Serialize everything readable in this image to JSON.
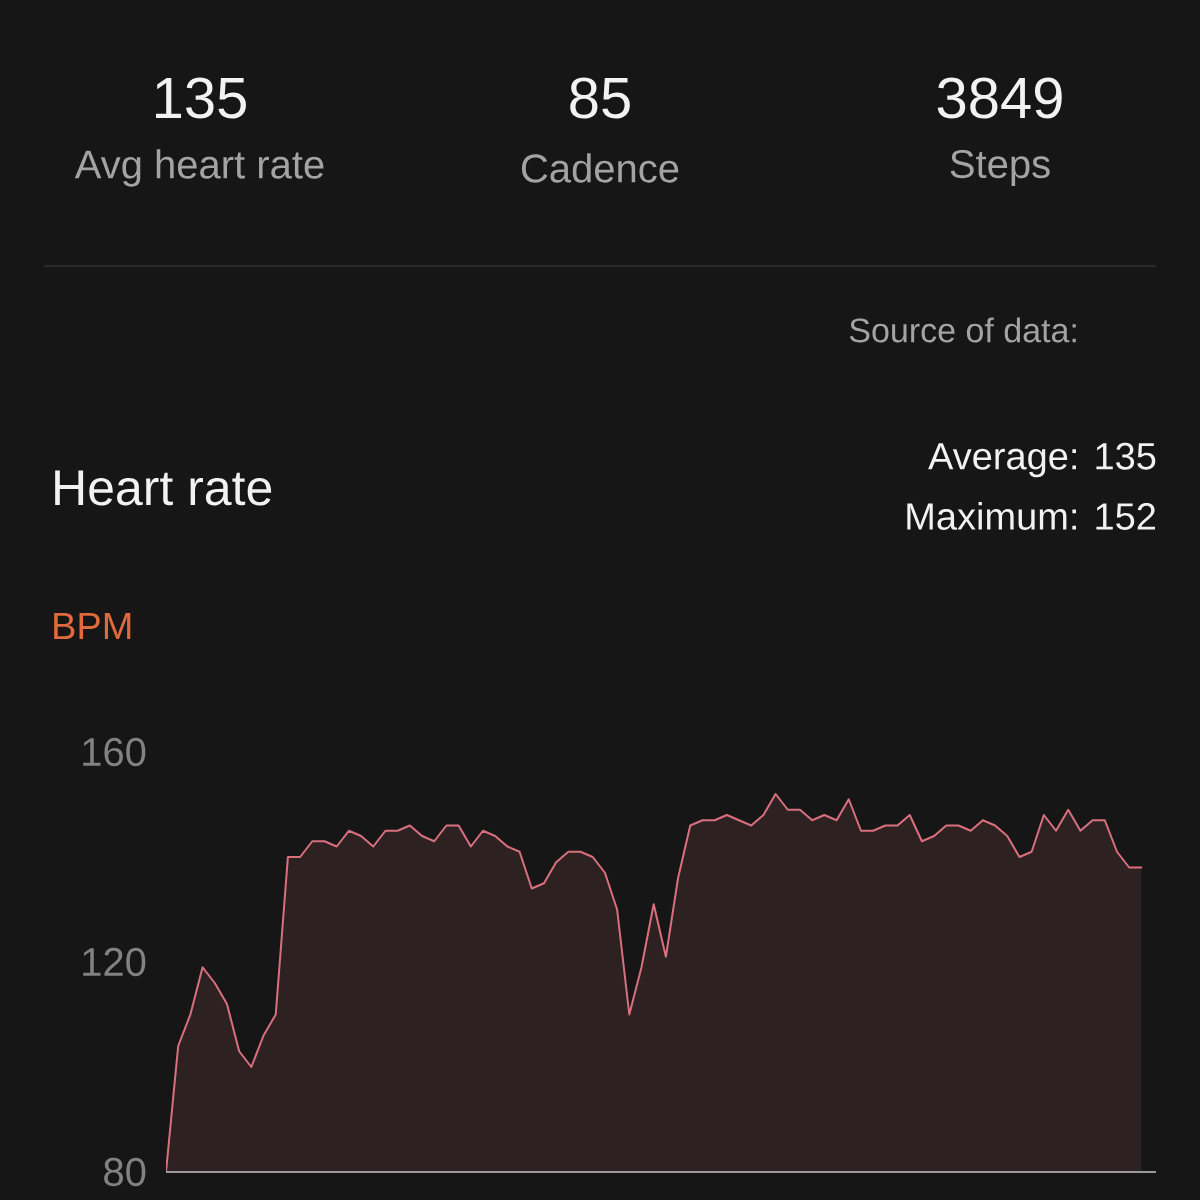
{
  "chart_data": [
    {
      "type": "other",
      "annotations": [
        "135",
        "Avg heart rate",
        "85",
        "Cadence",
        "3849",
        "Steps",
        "Source of data:"
      ]
    },
    {
      "type": "area",
      "title": "Heart rate",
      "ylabel": "BPM",
      "annotations": [
        "Average: 135",
        "Maximum: 152"
      ],
      "categories": [
        null,
        null,
        null,
        null,
        null,
        null,
        null,
        null,
        null,
        null,
        null,
        null,
        null,
        null,
        null,
        null,
        null,
        null,
        null,
        null,
        null,
        null,
        null,
        null,
        null,
        null,
        null,
        null,
        null,
        null,
        null,
        null,
        null,
        null,
        null,
        null,
        null,
        null,
        null,
        null,
        null,
        null,
        null,
        null,
        null,
        null,
        null,
        null,
        null,
        null,
        null,
        null,
        null,
        null,
        null,
        null,
        null,
        null,
        null,
        null,
        null,
        null,
        null,
        null,
        null,
        null,
        null,
        null,
        null,
        null,
        null,
        null,
        null,
        null,
        null,
        null,
        null,
        null,
        null,
        null,
        null
      ],
      "values": [
        80,
        104,
        110,
        119,
        116,
        112,
        103,
        100,
        106,
        110,
        140,
        140,
        143,
        143,
        142,
        145,
        144,
        142,
        145,
        145,
        146,
        144,
        143,
        146,
        146,
        142,
        145,
        144,
        142,
        141,
        134,
        135,
        139,
        141,
        141,
        140,
        137,
        130,
        110,
        119,
        131,
        121,
        136,
        146,
        147,
        147,
        148,
        147,
        146,
        148,
        152,
        149,
        149,
        147,
        148,
        147,
        151,
        145,
        145,
        146,
        146,
        148,
        143,
        144,
        146,
        146,
        145,
        147,
        146,
        144,
        140,
        141,
        148,
        145,
        149,
        145,
        147,
        147,
        141,
        138,
        138
      ],
      "color": "#d9707e",
      "ylim": [
        80,
        160
      ],
      "yticks": [
        80,
        120,
        160
      ]
    }
  ]
}
